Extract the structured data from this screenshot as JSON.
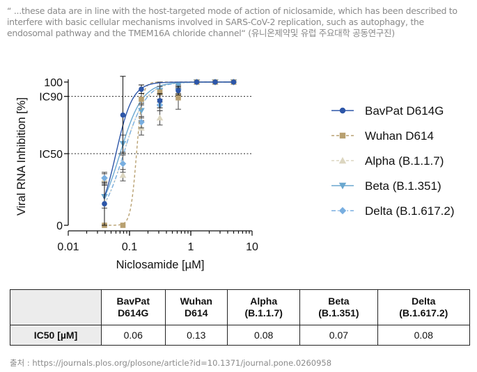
{
  "quote": "“ ...these data are in line with the host-targeted mode of action of niclosamide, which has been described to interfere with basic cellular mechanisms involved in SARS-CoV-2 replication, such as autophagy, the endosomal pathway and the TMEM16A chloride channel“ (유니온제약및 유럽 주요대학 공동연구진)",
  "chart_data": {
    "type": "scatter",
    "xlabel": "Niclosamide [µM]",
    "ylabel": "Viral RNA Inhibition [%]",
    "xscale": "log",
    "xlim": [
      0.01,
      10
    ],
    "ylim": [
      0,
      100
    ],
    "x_ticks": [
      "0.01",
      "0.1",
      "1",
      "10"
    ],
    "y_ticks": [
      {
        "value": 100,
        "label": "100"
      },
      {
        "value": 90,
        "label": "IC90"
      },
      {
        "value": 50,
        "label": "IC50"
      },
      {
        "value": 0,
        "label": "0"
      }
    ],
    "reference_lines": [
      90,
      50
    ],
    "legend_position": "right",
    "series": [
      {
        "name": "BavPat D614G",
        "color": "#2d56a8",
        "marker": "circle",
        "line": "solid",
        "ic50": 0.06,
        "x": [
          0.039,
          0.078,
          0.156,
          0.3125,
          0.625,
          1.25,
          2.5,
          5
        ],
        "y": [
          15,
          77,
          95,
          87,
          94,
          100,
          100,
          100
        ],
        "err": [
          15,
          27,
          3,
          5,
          3,
          0,
          0,
          0
        ]
      },
      {
        "name": "Wuhan D614",
        "color": "#b8a070",
        "marker": "square",
        "line": "dashed",
        "ic50": 0.13,
        "x": [
          0.039,
          0.078,
          0.156,
          0.3125,
          0.625,
          1.25,
          2.5,
          5
        ],
        "y": [
          0,
          0,
          88,
          93,
          89,
          100,
          100,
          100
        ],
        "err": [
          0,
          0,
          4,
          7,
          8,
          0,
          0,
          0
        ]
      },
      {
        "name": "Alpha (B.1.1.7)",
        "color": "#dcd6c0",
        "marker": "triangle-up",
        "line": "dashed",
        "ic50": 0.08,
        "x": [
          0.039,
          0.078,
          0.156,
          0.3125,
          0.625,
          1.25,
          2.5,
          5
        ],
        "y": [
          32,
          35,
          68,
          75,
          93,
          100,
          100,
          100
        ],
        "err": [
          4,
          4,
          5,
          5,
          3,
          0,
          0,
          0
        ]
      },
      {
        "name": "Beta (B.1.351)",
        "color": "#6aa7cf",
        "marker": "triangle-down",
        "line": "solid",
        "ic50": 0.07,
        "x": [
          0.039,
          0.078,
          0.156,
          0.3125,
          0.625,
          1.25,
          2.5,
          5
        ],
        "y": [
          20,
          57,
          80,
          94,
          98,
          100,
          100,
          100
        ],
        "err": [
          8,
          6,
          5,
          3,
          2,
          0,
          0,
          0
        ]
      },
      {
        "name": "Delta (B.1.617.2)",
        "color": "#78aee0",
        "marker": "diamond",
        "line": "dashdot",
        "ic50": 0.08,
        "x": [
          0.039,
          0.078,
          0.156,
          0.3125,
          0.625,
          1.25,
          2.5,
          5
        ],
        "y": [
          33,
          43,
          72,
          84,
          95,
          100,
          100,
          100
        ],
        "err": [
          4,
          6,
          4,
          4,
          3,
          0,
          0,
          0
        ]
      }
    ]
  },
  "table": {
    "corner": "",
    "headers": [
      {
        "line1": "BavPat",
        "line2": "D614G"
      },
      {
        "line1": "Wuhan",
        "line2": "D614"
      },
      {
        "line1": "Alpha",
        "line2": "(B.1.1.7)"
      },
      {
        "line1": "Beta",
        "line2": "(B.1.351)"
      },
      {
        "line1": "Delta",
        "line2": "(B.1.617.2)"
      }
    ],
    "row_label": "IC50 [µM]",
    "values": [
      "0.06",
      "0.13",
      "0.08",
      "0.07",
      "0.08"
    ]
  },
  "source": "출처 : https://journals.plos.org/plosone/article?id=10.1371/journal.pone.0260958"
}
